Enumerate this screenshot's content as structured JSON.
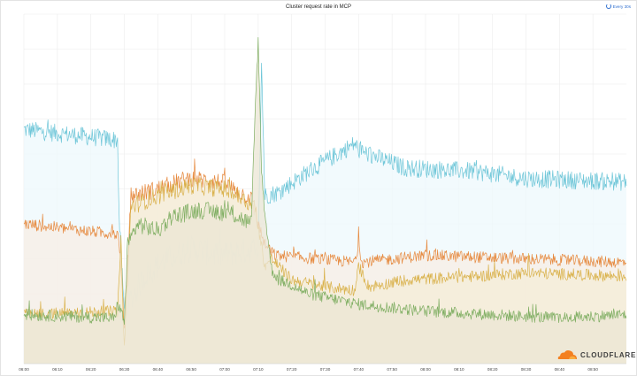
{
  "panel": {
    "title": "Cluster request rate in MCP",
    "refresh_label": "Every 30s"
  },
  "chart_data": {
    "type": "area",
    "title": "Cluster request rate in MCP",
    "x_ticks": [
      "06:00",
      "06:10",
      "06:20",
      "06:30",
      "06:40",
      "06:50",
      "07:00",
      "07:10",
      "07:20",
      "07:30",
      "07:40",
      "07:50",
      "08:00",
      "08:10",
      "08:20",
      "08:30",
      "08:40",
      "08:50"
    ],
    "x_range": [
      "06:00",
      "09:00"
    ],
    "y_axis_labels_visible": false,
    "grid": true,
    "legend": "none",
    "series": [
      {
        "color": "#6ec6d8",
        "fill": "#eef8fc",
        "keyframes": [
          [
            0,
            67
          ],
          [
            28,
            64
          ],
          [
            28.5,
            40
          ],
          [
            30,
            15
          ],
          [
            36,
            25
          ],
          [
            41,
            29
          ],
          [
            50,
            33
          ],
          [
            59,
            31
          ],
          [
            70,
            33
          ],
          [
            71,
            86
          ],
          [
            72,
            48
          ],
          [
            76,
            49
          ],
          [
            85,
            55
          ],
          [
            99,
            63
          ],
          [
            100,
            61
          ],
          [
            114,
            56
          ],
          [
            135,
            55
          ],
          [
            150,
            53
          ],
          [
            179,
            52
          ]
        ]
      },
      {
        "color": "#e6893e",
        "fill": "#f7ede4",
        "keyframes": [
          [
            0,
            40
          ],
          [
            28,
            37
          ],
          [
            28.5,
            35
          ],
          [
            30,
            10
          ],
          [
            32,
            48
          ],
          [
            40,
            50
          ],
          [
            49,
            53
          ],
          [
            59,
            52
          ],
          [
            68,
            47
          ],
          [
            70,
            40
          ],
          [
            72,
            34
          ],
          [
            75,
            31
          ],
          [
            99,
            29
          ],
          [
            100,
            35
          ],
          [
            101,
            29
          ],
          [
            120,
            31
          ],
          [
            179,
            29
          ]
        ]
      },
      {
        "color": "#d9b14a",
        "fill": "#f4ecd7",
        "keyframes": [
          [
            0,
            14
          ],
          [
            28,
            15
          ],
          [
            29,
            35
          ],
          [
            30,
            5
          ],
          [
            32,
            45
          ],
          [
            40,
            48
          ],
          [
            50,
            51
          ],
          [
            60,
            50
          ],
          [
            69,
            45
          ],
          [
            72,
            28
          ],
          [
            74,
            30
          ],
          [
            80,
            24
          ],
          [
            90,
            22
          ],
          [
            99,
            21
          ],
          [
            100,
            28
          ],
          [
            103,
            22
          ],
          [
            115,
            24
          ],
          [
            135,
            25
          ],
          [
            150,
            26
          ],
          [
            179,
            25
          ]
        ]
      },
      {
        "color": "#7fae62",
        "fill": "#ebe6d4",
        "keyframes": [
          [
            0,
            14
          ],
          [
            27,
            13
          ],
          [
            28,
            17
          ],
          [
            29,
            15
          ],
          [
            30,
            12
          ],
          [
            31,
            34
          ],
          [
            34,
            40
          ],
          [
            40,
            38
          ],
          [
            44,
            42
          ],
          [
            52,
            44
          ],
          [
            62,
            43
          ],
          [
            68,
            40
          ],
          [
            69,
            70
          ],
          [
            70,
            93
          ],
          [
            71,
            55
          ],
          [
            72,
            43
          ],
          [
            74,
            27
          ],
          [
            76,
            24
          ],
          [
            79,
            23
          ],
          [
            85,
            20
          ],
          [
            100,
            17
          ],
          [
            120,
            15
          ],
          [
            140,
            14
          ],
          [
            160,
            13
          ],
          [
            179,
            14
          ]
        ]
      }
    ]
  },
  "watermark": {
    "brand": "CLOUDFLARE",
    "icon": "cloud-icon",
    "color": "#f38020"
  }
}
